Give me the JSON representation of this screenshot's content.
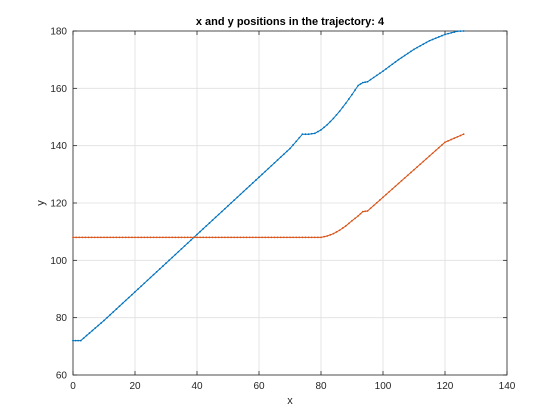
{
  "chart_data": {
    "type": "line",
    "title": "x and y positions in the trajectory: 4",
    "xlabel": "x",
    "ylabel": "y",
    "xlim": [
      0,
      140
    ],
    "ylim": [
      60,
      180
    ],
    "xticks": [
      "0",
      "20",
      "40",
      "60",
      "80",
      "100",
      "120",
      "140"
    ],
    "yticks": [
      "60",
      "80",
      "100",
      "120",
      "140",
      "160",
      "180"
    ],
    "grid": true,
    "legend": "none",
    "series": [
      {
        "color": "#0072BD",
        "marker": "dot",
        "points": [
          [
            0,
            72
          ],
          [
            2.5,
            72
          ],
          [
            10,
            79
          ],
          [
            20,
            89
          ],
          [
            30,
            99
          ],
          [
            40,
            109
          ],
          [
            50,
            119
          ],
          [
            60,
            129
          ],
          [
            70,
            139
          ],
          [
            74,
            144
          ],
          [
            76,
            144
          ],
          [
            78,
            144.3
          ],
          [
            80,
            145.5
          ],
          [
            82,
            147.3
          ],
          [
            84,
            149.5
          ],
          [
            86,
            152
          ],
          [
            88,
            154.8
          ],
          [
            90,
            157.8
          ],
          [
            92,
            161
          ],
          [
            93.5,
            162
          ],
          [
            95,
            162.3
          ],
          [
            100,
            166
          ],
          [
            105,
            170
          ],
          [
            110,
            173.6
          ],
          [
            115,
            176.6
          ],
          [
            120,
            178.8
          ],
          [
            124,
            179.9
          ],
          [
            126,
            180
          ]
        ]
      },
      {
        "color": "#D95319",
        "marker": "dot",
        "points": [
          [
            0,
            108
          ],
          [
            20,
            108
          ],
          [
            40,
            108
          ],
          [
            60,
            108
          ],
          [
            80,
            108
          ],
          [
            82,
            108.5
          ],
          [
            84,
            109.3
          ],
          [
            86,
            110.5
          ],
          [
            88,
            112
          ],
          [
            90,
            113.8
          ],
          [
            92,
            115.5
          ],
          [
            93.5,
            117
          ],
          [
            95,
            117.2
          ],
          [
            100,
            122
          ],
          [
            105,
            126.8
          ],
          [
            110,
            131.6
          ],
          [
            115,
            136.4
          ],
          [
            120,
            141.2
          ],
          [
            126,
            144
          ]
        ]
      }
    ]
  }
}
